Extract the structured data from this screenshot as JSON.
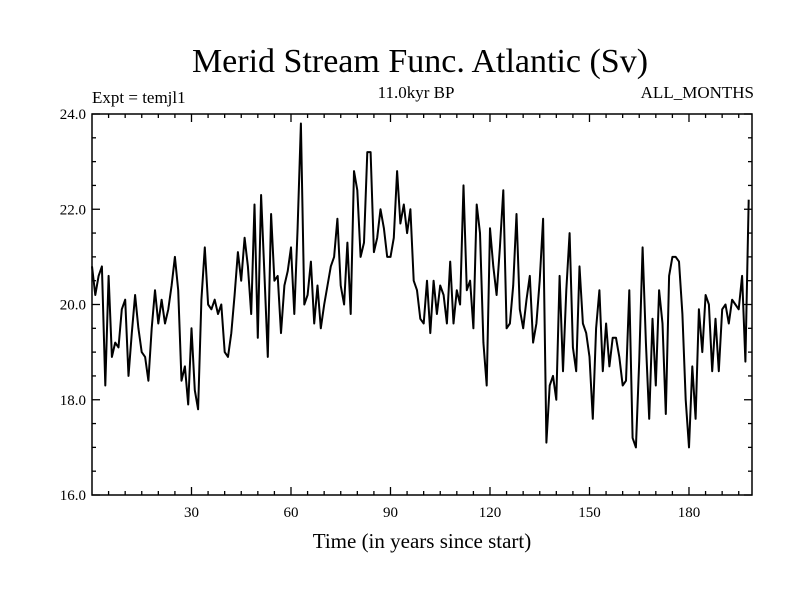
{
  "chart_data": {
    "type": "line",
    "title": "Merid Stream Func. Atlantic (Sv)",
    "subtitle": "11.0kyr BP",
    "left_label": "Expt = temjl1",
    "right_label": "ALL_MONTHS",
    "xlabel": "Time (in years since start)",
    "ylabel": "",
    "xlim": [
      0,
      199
    ],
    "ylim": [
      16,
      24
    ],
    "x_ticks": [
      30,
      60,
      90,
      120,
      150,
      180
    ],
    "x_tick_labels": [
      "30",
      "60",
      "90",
      "120",
      "150",
      "180"
    ],
    "y_ticks": [
      16,
      18,
      20,
      22,
      24
    ],
    "y_tick_labels": [
      "16.0",
      "18.0",
      "20.0",
      "22.0",
      "24.0"
    ],
    "series": [
      {
        "name": "Merid Stream Func.",
        "x_start": 0,
        "x_step": 1,
        "values": [
          20.8,
          20.2,
          20.6,
          20.8,
          18.3,
          20.6,
          18.9,
          19.2,
          19.1,
          19.9,
          20.1,
          18.5,
          19.4,
          20.2,
          19.5,
          19.0,
          18.9,
          18.4,
          19.5,
          20.3,
          19.6,
          20.1,
          19.6,
          19.9,
          20.4,
          21.0,
          20.3,
          18.4,
          18.7,
          17.9,
          19.5,
          18.2,
          17.8,
          20.1,
          21.2,
          20.0,
          19.9,
          20.1,
          19.8,
          20.0,
          19.0,
          18.9,
          19.4,
          20.2,
          21.1,
          20.5,
          21.4,
          20.8,
          19.8,
          22.1,
          19.3,
          22.3,
          20.6,
          18.9,
          21.9,
          20.5,
          20.6,
          19.4,
          20.4,
          20.7,
          21.2,
          19.8,
          21.6,
          23.8,
          20.0,
          20.2,
          20.9,
          19.6,
          20.4,
          19.5,
          20.0,
          20.4,
          20.8,
          21.0,
          21.8,
          20.4,
          20.0,
          21.3,
          19.8,
          22.8,
          22.4,
          21.0,
          21.3,
          23.2,
          23.2,
          21.1,
          21.4,
          22.0,
          21.6,
          21.0,
          21.0,
          21.4,
          22.8,
          21.7,
          22.1,
          21.5,
          22.0,
          20.5,
          20.3,
          19.7,
          19.6,
          20.5,
          19.4,
          20.5,
          19.8,
          20.4,
          20.2,
          19.6,
          20.9,
          19.6,
          20.3,
          20.0,
          22.5,
          20.3,
          20.5,
          19.5,
          22.1,
          21.5,
          19.2,
          18.3,
          21.6,
          20.8,
          20.2,
          21.2,
          22.4,
          19.5,
          19.6,
          20.4,
          21.9,
          19.9,
          19.5,
          20.1,
          20.6,
          19.2,
          19.6,
          20.5,
          21.8,
          17.1,
          18.3,
          18.5,
          18.0,
          20.6,
          18.6,
          20.3,
          21.5,
          19.1,
          18.6,
          20.8,
          19.6,
          19.4,
          18.9,
          17.6,
          19.5,
          20.3,
          18.6,
          19.6,
          18.7,
          19.3,
          19.3,
          18.9,
          18.3,
          18.4,
          20.3,
          17.2,
          17.0,
          18.8,
          21.2,
          19.2,
          17.6,
          19.7,
          18.3,
          20.3,
          19.6,
          17.7,
          20.6,
          21.0,
          21.0,
          20.9,
          19.8,
          18.0,
          17.0,
          18.7,
          17.6,
          19.9,
          19.0,
          20.2,
          20.0,
          18.6,
          19.7,
          18.6,
          19.9,
          20.0,
          19.6,
          20.1,
          20.0,
          19.9,
          20.6,
          18.8,
          22.2
        ]
      }
    ]
  }
}
